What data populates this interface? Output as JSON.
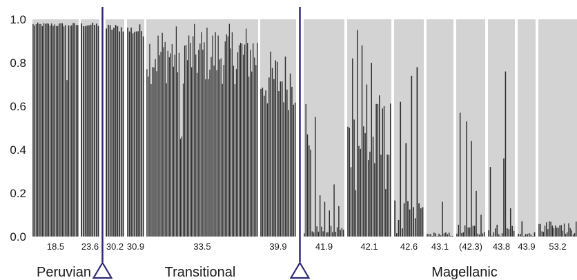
{
  "chart_data": {
    "type": "bar",
    "ylim": [
      0,
      1.0
    ],
    "yticks": [
      "0.0",
      "0.2",
      "0.4",
      "0.6",
      "0.8",
      "1.0"
    ],
    "grid": false,
    "groups": [
      {
        "label": "18.5",
        "n": 30,
        "mean": 0.975,
        "spread": 0.01,
        "dips": [
          [
            22,
            0.72
          ]
        ]
      },
      {
        "label": "23.6",
        "n": 10,
        "mean": 0.975,
        "spread": 0.01,
        "dips": []
      },
      {
        "label": "30.2",
        "n": 10,
        "mean": 0.96,
        "spread": 0.02,
        "dips": []
      },
      {
        "label": "30.9",
        "n": 10,
        "mean": 0.95,
        "spread": 0.03,
        "dips": []
      },
      {
        "label": "33.5",
        "n": 80,
        "mean": 0.84,
        "spread": 0.14,
        "dips": [
          [
            24,
            0.45
          ],
          [
            25,
            0.46
          ]
        ]
      },
      {
        "label": "39.9",
        "n": 22,
        "mean": 0.72,
        "spread": 0.14,
        "dips": []
      },
      {
        "label": "41.9",
        "n": 26,
        "mean": 0.03,
        "spread": 0.02,
        "peaks": [
          [
            1,
            0.61
          ],
          [
            2,
            0.47
          ],
          [
            3,
            0.42
          ],
          [
            4,
            0.4
          ],
          [
            7,
            0.55
          ],
          [
            10,
            0.19
          ],
          [
            13,
            0.16
          ],
          [
            16,
            0.12
          ],
          [
            19,
            0.24
          ],
          [
            22,
            0.14
          ]
        ]
      },
      {
        "label": "42.1",
        "n": 28,
        "mean": 0.42,
        "spread": 0.22,
        "peaks": [
          [
            3,
            0.82
          ],
          [
            6,
            0.95
          ],
          [
            9,
            0.88
          ],
          [
            12,
            0.7
          ],
          [
            15,
            0.8
          ],
          [
            20,
            0.65
          ],
          [
            23,
            0.6
          ]
        ]
      },
      {
        "label": "42.6",
        "n": 16,
        "mean": 0.09,
        "spread": 0.08,
        "peaks": [
          [
            3,
            0.62
          ],
          [
            6,
            0.43
          ],
          [
            9,
            0.74
          ],
          [
            12,
            0.78
          ],
          [
            14,
            0.13
          ]
        ]
      },
      {
        "label": "43.1",
        "n": 16,
        "mean": 0.01,
        "spread": 0.01,
        "peaks": [
          [
            9,
            0.16
          ]
        ]
      },
      {
        "label": "(42.3)",
        "n": 18,
        "mean": 0.03,
        "spread": 0.03,
        "peaks": [
          [
            2,
            0.57
          ],
          [
            6,
            0.53
          ],
          [
            9,
            0.44
          ],
          [
            12,
            0.21
          ],
          [
            15,
            0.1
          ]
        ]
      },
      {
        "label": "43.8",
        "n": 16,
        "mean": 0.03,
        "spread": 0.03,
        "peaks": [
          [
            1,
            0.32
          ],
          [
            9,
            0.36
          ],
          [
            10,
            0.76
          ],
          [
            13,
            0.13
          ]
        ]
      },
      {
        "label": "43.9",
        "n": 10,
        "mean": 0.01,
        "spread": 0.01,
        "peaks": [
          [
            2,
            0.07
          ]
        ]
      },
      {
        "label": "53.2",
        "n": 26,
        "mean": 0.04,
        "spread": 0.03,
        "peaks": [
          [
            7,
            0.07
          ],
          [
            17,
            0.06
          ]
        ]
      }
    ],
    "regions": [
      "Peruvian",
      "Transitional",
      "Magellanic"
    ],
    "boundaries_after_group": [
      1,
      5
    ],
    "colors": {
      "background": "#d3d3d3",
      "bar": "#2b2b2b",
      "marker": "#2e2a78"
    }
  }
}
